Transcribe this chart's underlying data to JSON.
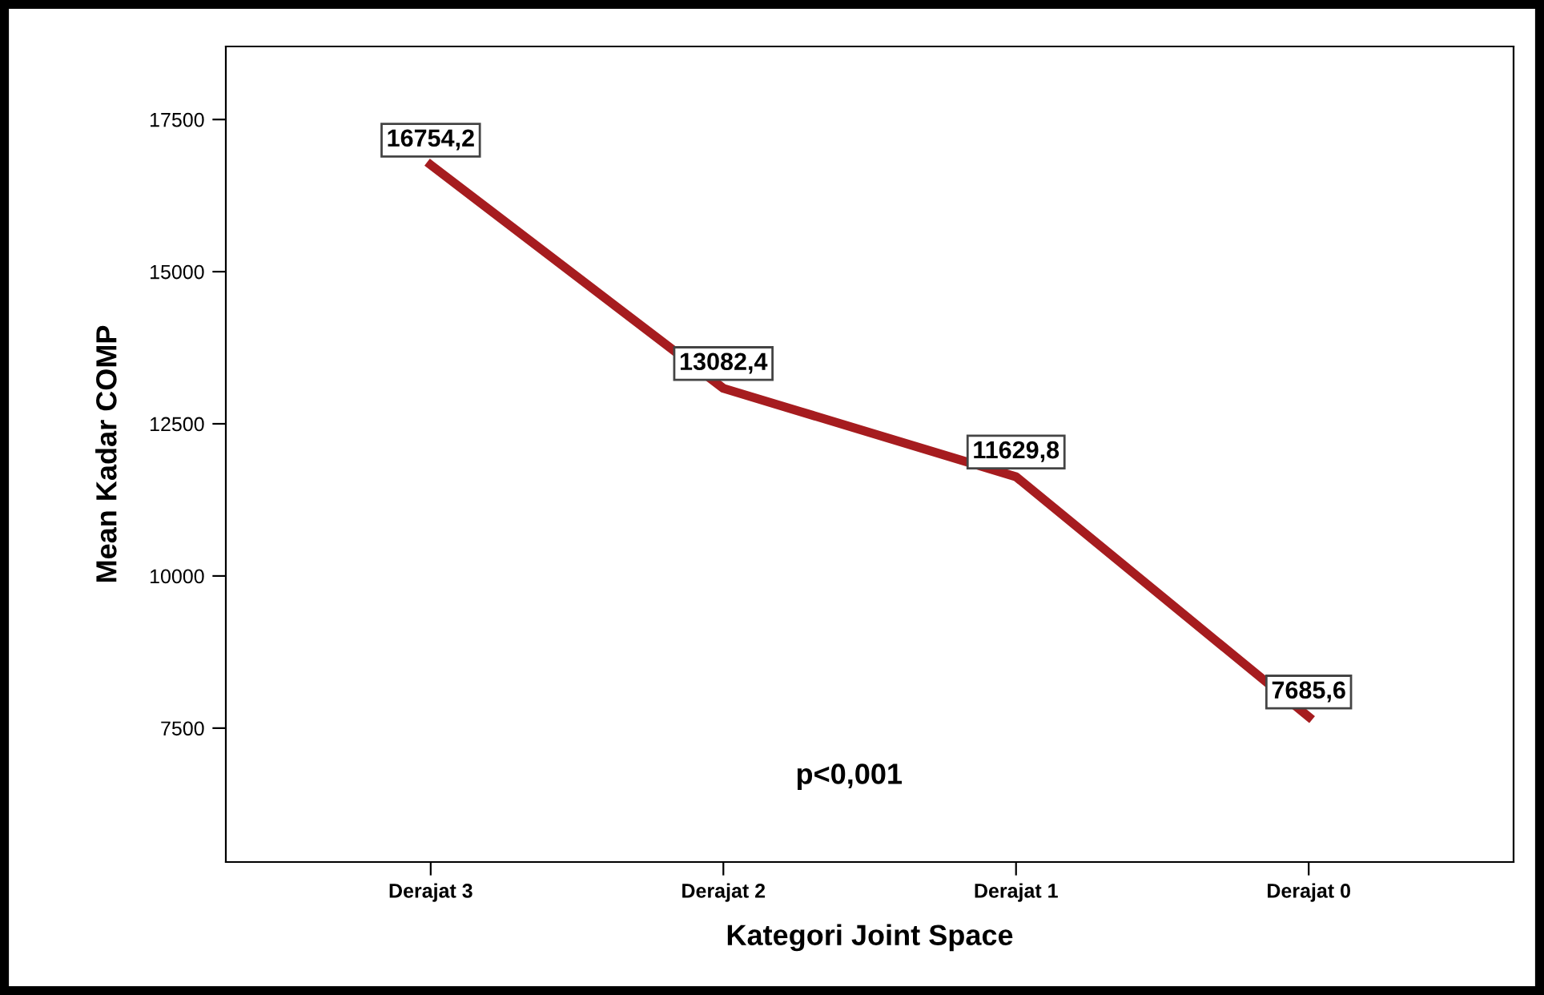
{
  "chart_data": {
    "type": "line",
    "xlabel": "Kategori Joint Space",
    "ylabel": "Mean Kadar COMP",
    "categories": [
      "Derajat 3",
      "Derajat 2",
      "Derajat 1",
      "Derajat 0"
    ],
    "series": [
      {
        "color": "#a61c1f",
        "values": [
          16754.2,
          13082.4,
          11629.8,
          7685.6
        ],
        "value_labels": [
          "16754,2",
          "13082,4",
          "11629,8",
          "7685,6"
        ]
      }
    ],
    "ylim": [
      5300,
      18700
    ],
    "yticks": [
      7500,
      10000,
      12500,
      15000,
      17500
    ],
    "annotations": [
      "p<0,001"
    ],
    "grid": false,
    "line_style": "solid"
  }
}
